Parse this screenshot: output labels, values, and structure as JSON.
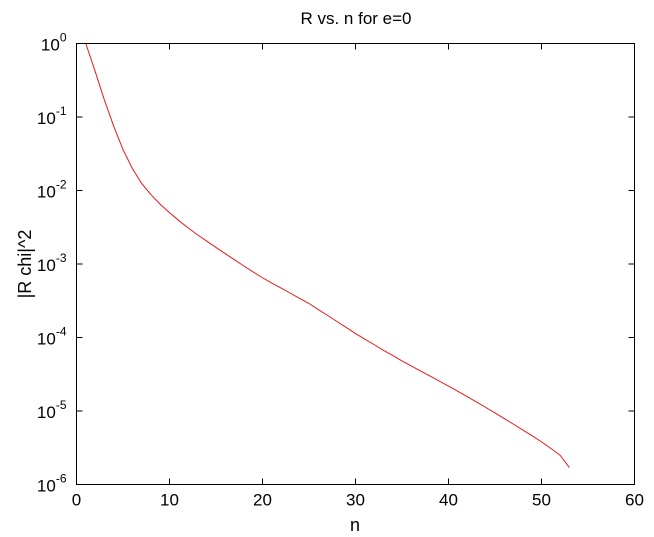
{
  "chart_data": {
    "type": "line",
    "title": "R vs. n for e=0",
    "xlabel": "n",
    "ylabel": "|R chi|^2",
    "xlim": [
      0,
      60
    ],
    "ylim": [
      1e-06,
      1
    ],
    "yscale": "log",
    "grid": false,
    "x_ticks": [
      0,
      10,
      20,
      30,
      40,
      50,
      60
    ],
    "y_ticks": [
      {
        "base": "10",
        "exp": "-6",
        "value": 1e-06
      },
      {
        "base": "10",
        "exp": "-5",
        "value": 1e-05
      },
      {
        "base": "10",
        "exp": "-4",
        "value": 0.0001
      },
      {
        "base": "10",
        "exp": "-3",
        "value": 0.001
      },
      {
        "base": "10",
        "exp": "-2",
        "value": 0.01
      },
      {
        "base": "10",
        "exp": "-1",
        "value": 0.1
      },
      {
        "base": "10",
        "exp": "0",
        "value": 1
      }
    ],
    "series": [
      {
        "color": "#e8191b",
        "x": [
          1,
          2,
          3,
          4,
          5,
          6,
          7,
          8,
          9,
          10,
          11,
          12,
          13,
          14,
          15,
          16,
          17,
          18,
          19,
          20,
          21,
          22,
          23,
          24,
          25,
          26,
          27,
          28,
          29,
          30,
          31,
          32,
          33,
          34,
          35,
          36,
          37,
          38,
          39,
          40,
          41,
          42,
          43,
          44,
          45,
          46,
          47,
          48,
          49,
          50,
          51,
          52,
          53
        ],
        "y": [
          1.0,
          0.42,
          0.17,
          0.075,
          0.036,
          0.02,
          0.0125,
          0.0088,
          0.0065,
          0.005,
          0.0039,
          0.0031,
          0.0025,
          0.00205,
          0.00168,
          0.00138,
          0.00114,
          0.00094,
          0.00078,
          0.00065,
          0.00055,
          0.00047,
          0.0004,
          0.00034,
          0.00029,
          0.00024,
          0.0002,
          0.000165,
          0.000137,
          0.000113,
          9.5e-05,
          8e-05,
          6.7e-05,
          5.7e-05,
          4.8e-05,
          4.1e-05,
          3.5e-05,
          3e-05,
          2.55e-05,
          2.18e-05,
          1.85e-05,
          1.57e-05,
          1.33e-05,
          1.12e-05,
          9.4e-06,
          7.9e-06,
          6.6e-06,
          5.5e-06,
          4.6e-06,
          3.8e-06,
          3.1e-06,
          2.5e-06,
          1.7e-06
        ]
      }
    ]
  }
}
